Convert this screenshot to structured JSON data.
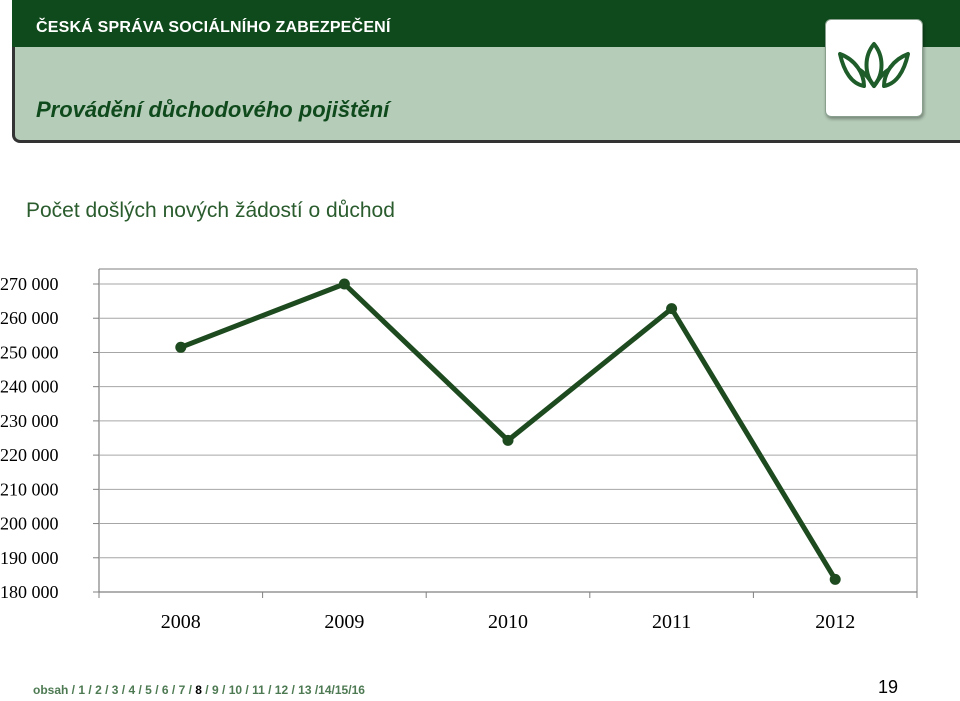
{
  "header": {
    "org_name": "ČESKÁ SPRÁVA SOCIÁLNÍHO ZABEZPEČENÍ",
    "section_title": "Provádění důchodového pojištění"
  },
  "colors": {
    "header_band": "#0f4a1c",
    "header_panel": "#b5ccb8",
    "line": "#1e4a1f",
    "grid": "#a6a6a6"
  },
  "logo": {
    "icon": "cssz-tulip-logo-icon"
  },
  "chart_title": "Počet došlých nových žádostí o důchod",
  "chart_data": {
    "type": "line",
    "categories": [
      "2008",
      "2009",
      "2010",
      "2011",
      "2012"
    ],
    "values": [
      251500,
      270000,
      224300,
      262800,
      183700
    ],
    "ylim": [
      180000,
      270000
    ],
    "yticks": [
      180000,
      190000,
      200000,
      210000,
      220000,
      230000,
      240000,
      250000,
      260000,
      270000
    ],
    "ytick_labels": [
      "180 000",
      "190 000",
      "200 000",
      "210 000",
      "220 000",
      "230 000",
      "240 000",
      "250 000",
      "260 000",
      "270 000"
    ],
    "grid": true,
    "legend": "none"
  },
  "footer": {
    "nav": [
      "obsah",
      "1",
      "2",
      "3",
      "4",
      "5",
      "6",
      "7",
      "8",
      "9",
      "10",
      "11",
      "12",
      "13",
      "14",
      "15",
      "16"
    ],
    "current": "8",
    "page_number": "19"
  }
}
